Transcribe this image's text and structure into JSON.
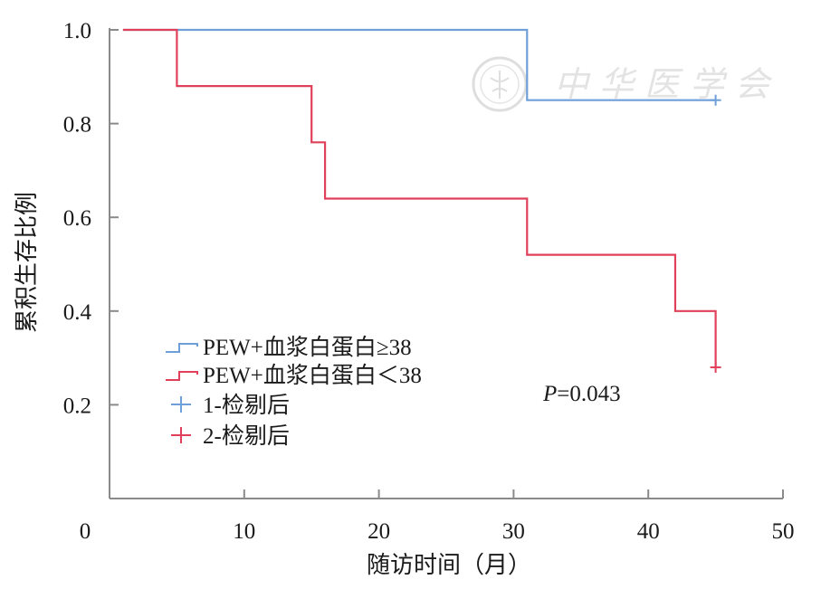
{
  "chart_data": {
    "type": "line",
    "chart_style": "kaplan-meier step curves",
    "xlabel": "随访时间（月）",
    "ylabel": "累积生存比例",
    "xlim": [
      0,
      50
    ],
    "ylim": [
      0,
      1.0
    ],
    "x_ticks": [
      0,
      10,
      20,
      30,
      40,
      50
    ],
    "x_tick_labels": [
      "0",
      "10",
      "20",
      "30",
      "40",
      "50"
    ],
    "y_ticks": [
      0.2,
      0.4,
      0.6,
      0.8,
      1.0
    ],
    "y_tick_labels": [
      "0.2",
      "0.4",
      "0.6",
      "0.8",
      "1.0"
    ],
    "grid": false,
    "legend_position": "lower-left",
    "series": [
      {
        "name": "PEW+血浆白蛋白≥38",
        "color": "#6f9fd8",
        "steps": [
          [
            1,
            1.0
          ],
          [
            31,
            0.85
          ],
          [
            45,
            0.85
          ]
        ],
        "censor_marks": [
          [
            45,
            0.85
          ]
        ]
      },
      {
        "name": "PEW+血浆白蛋白＜38",
        "color": "#e0405a",
        "steps": [
          [
            1,
            1.0
          ],
          [
            5,
            0.88
          ],
          [
            15,
            0.76
          ],
          [
            16,
            0.64
          ],
          [
            31,
            0.52
          ],
          [
            42,
            0.4
          ],
          [
            45,
            0.28
          ]
        ],
        "censor_marks": [
          [
            45,
            0.28
          ]
        ]
      }
    ],
    "legend": [
      {
        "label": "PEW+血浆白蛋白≥38",
        "kind": "step",
        "color": "#6f9fd8"
      },
      {
        "label": "PEW+血浆白蛋白＜38",
        "kind": "step",
        "color": "#e0405a"
      },
      {
        "label": "1-检剔后",
        "kind": "censor",
        "color": "#6f9fd8"
      },
      {
        "label": "2-检剔后",
        "kind": "censor",
        "color": "#e0405a"
      }
    ],
    "annotation": {
      "italic": "P",
      "text": "=0.043"
    },
    "watermark": {
      "text": "中华医学会",
      "kind": "seal-logo"
    }
  }
}
